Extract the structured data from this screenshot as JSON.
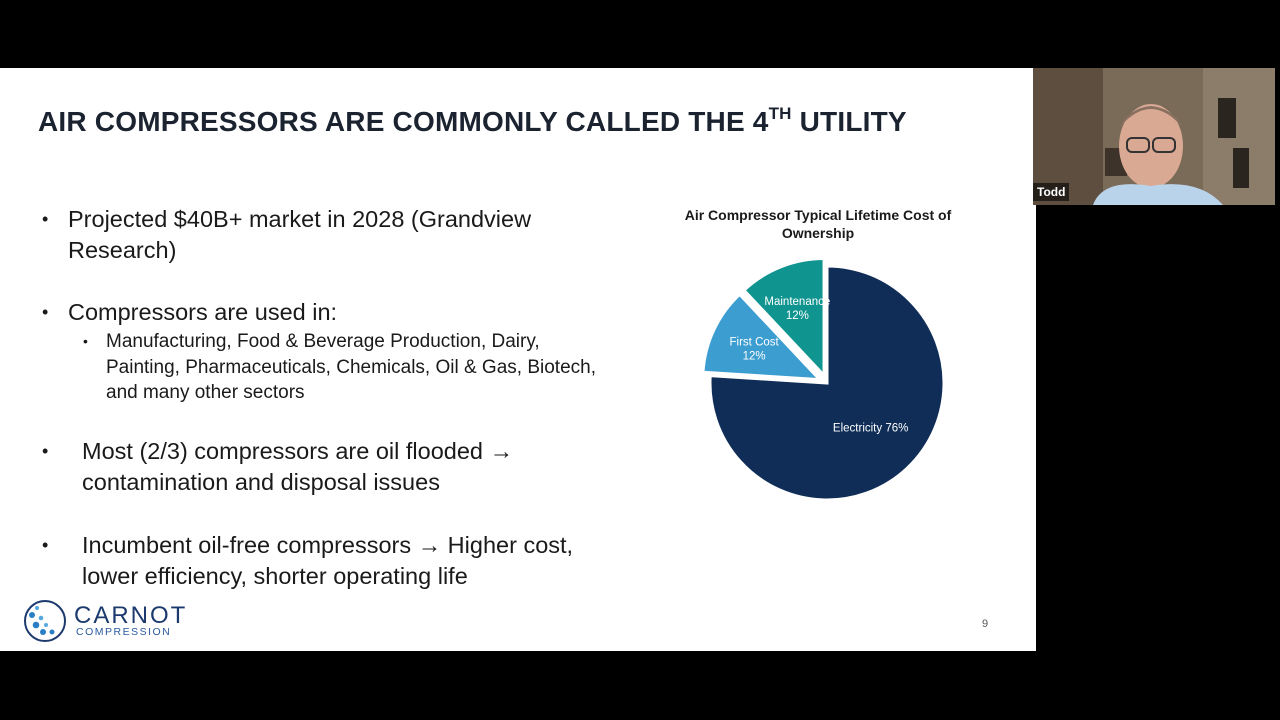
{
  "slide": {
    "title": "AIR COMPRESSORS ARE COMMONLY CALLED THE 4",
    "title_sup": "TH",
    "title_end": "UTILITY",
    "bullet_glyph": "•",
    "bullets": [
      {
        "lines": [
          "Projected $40B+ market in 2028 (Grandview",
          "Research)"
        ]
      },
      {
        "lines": [
          "Compressors are used in:"
        ],
        "sub": [
          "Manufacturing, Food & Beverage Production, Dairy,",
          "Painting, Pharmaceuticals, Chemicals, Oil & Gas, Biotech,",
          "and many other sectors"
        ]
      },
      {
        "lines": [
          "Most (2/3) compressors are oil flooded →",
          "contamination and disposal issues"
        ]
      },
      {
        "lines": [
          "Incumbent oil-free compressors → Higher cost,",
          "lower efficiency, shorter operating life"
        ]
      }
    ],
    "page_number": "9",
    "logo": {
      "line1": "CARNOT",
      "line2": "COMPRESSION"
    }
  },
  "chart_data": {
    "type": "pie",
    "title": "Air Compressor Typical Lifetime Cost of Ownership",
    "title_lines": [
      "Air Compressor Typical Lifetime Cost of",
      "Ownership"
    ],
    "series": [
      {
        "name": "Electricity",
        "label": "Electricity 76%",
        "value": 76,
        "color": "#0f2d57"
      },
      {
        "name": "First Cost",
        "label": "First Cost 12%",
        "value": 12,
        "color": "#3c9dd0"
      },
      {
        "name": "Maintenance",
        "label": "Maintenance 12%",
        "value": 12,
        "color": "#10948f"
      }
    ]
  },
  "video": {
    "participant_name": "Todd"
  }
}
